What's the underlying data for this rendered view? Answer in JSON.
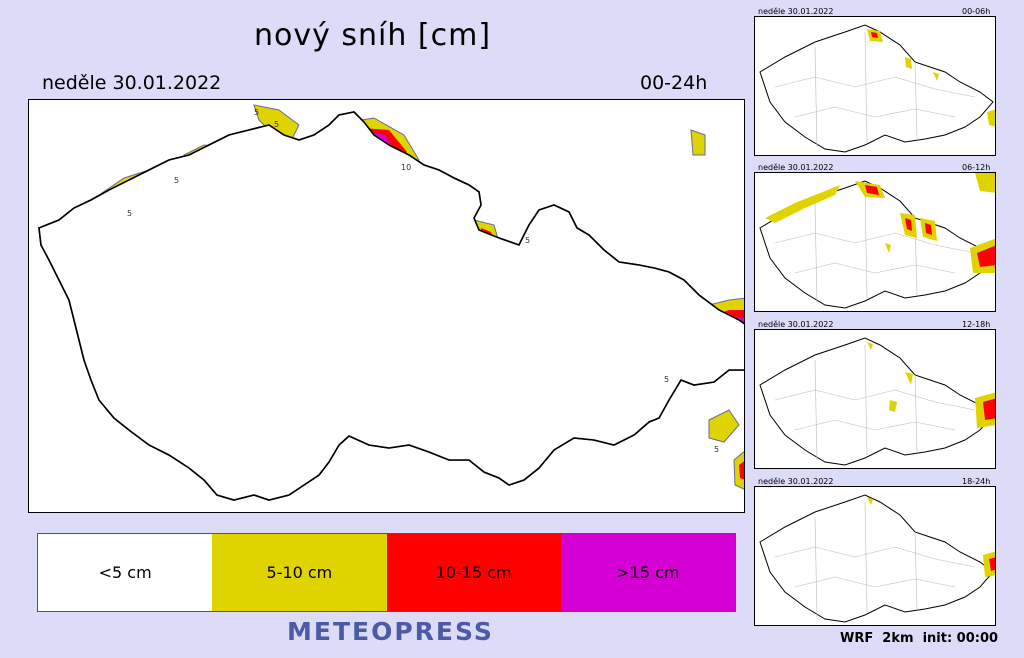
{
  "title": "nový sníh [cm]",
  "date": "neděle 30.01.2022",
  "period": "00-24h",
  "legend": [
    {
      "label": "<5 cm",
      "color": "#ffffff"
    },
    {
      "label": "5-10 cm",
      "color": "#e0d400"
    },
    {
      "label": "10-15 cm",
      "color": "#ff0000"
    },
    {
      "label": ">15 cm",
      "color": "#d400d4"
    }
  ],
  "brand": "METEOPRESS",
  "footer": "WRF  2km  init: 00:00",
  "panels": [
    {
      "date": "neděle 30.01.2022",
      "period": "00-06h"
    },
    {
      "date": "neděle 30.01.2022",
      "period": "06-12h"
    },
    {
      "date": "neděle 30.01.2022",
      "period": "12-18h"
    },
    {
      "date": "neděle 30.01.2022",
      "period": "18-24h"
    }
  ],
  "contour_labels": [
    "5",
    "5",
    "5",
    "5",
    "10",
    "5",
    "5",
    "5"
  ]
}
